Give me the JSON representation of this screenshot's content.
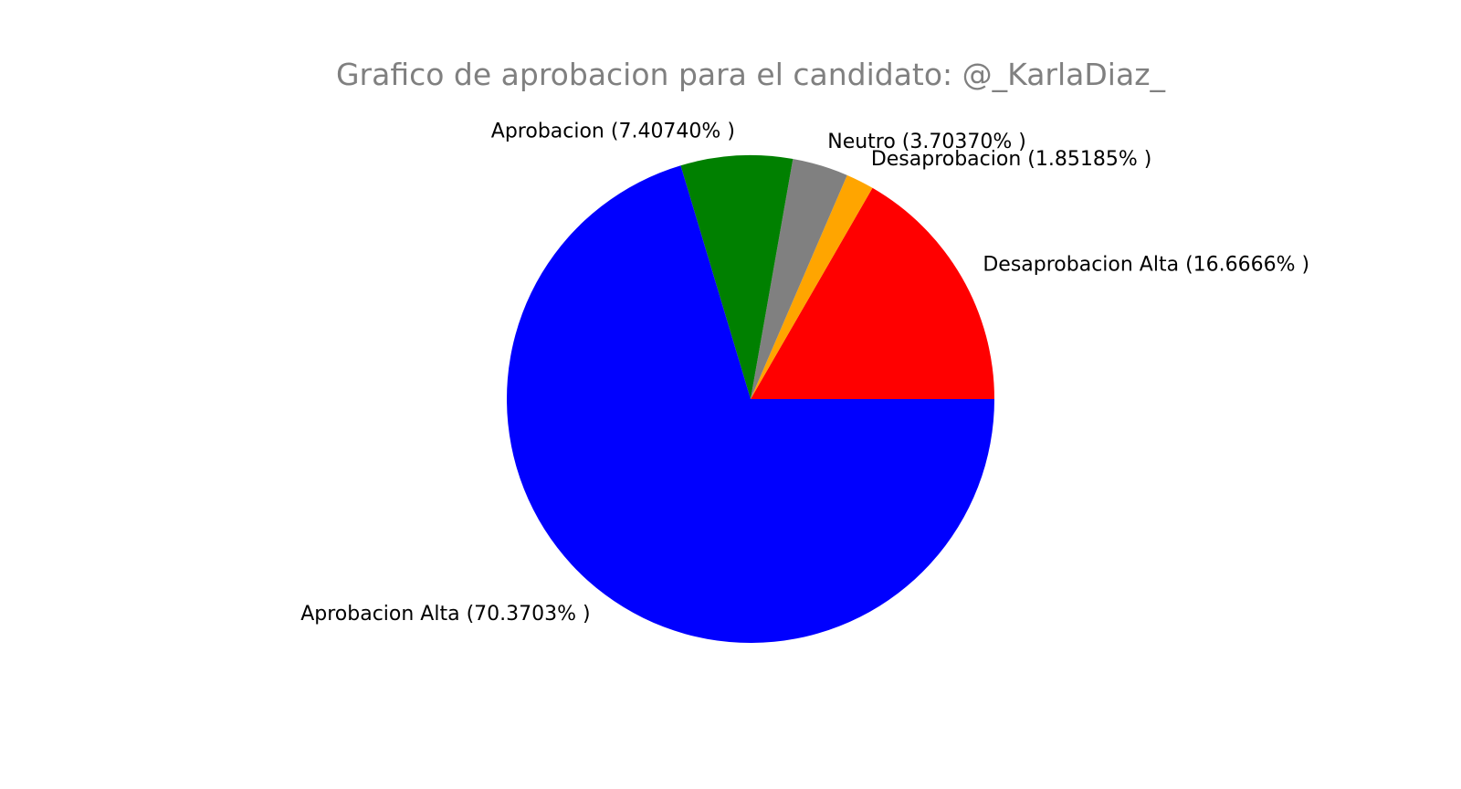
{
  "chart_data": {
    "type": "pie",
    "title": "Grafico de aprobacion para el candidato: @_KarlaDiaz_",
    "slices": [
      {
        "name": "Desaprobacion Alta",
        "label": "Desaprobacion Alta (16.6666% )",
        "value": 16.6666,
        "color": "#ff0000"
      },
      {
        "name": "Desaprobacion",
        "label": "Desaprobacion (1.85185% )",
        "value": 1.85185,
        "color": "#ffa500"
      },
      {
        "name": "Neutro",
        "label": "Neutro (3.70370% )",
        "value": 3.7037,
        "color": "#808080"
      },
      {
        "name": "Aprobacion",
        "label": "Aprobacion (7.40740% )",
        "value": 7.4074,
        "color": "#008000"
      },
      {
        "name": "Aprobacion Alta",
        "label": "Aprobacion Alta (70.3703% )",
        "value": 70.3703,
        "color": "#0000ff"
      }
    ],
    "start_angle": 0,
    "direction": "counterclockwise",
    "legend": "none"
  }
}
